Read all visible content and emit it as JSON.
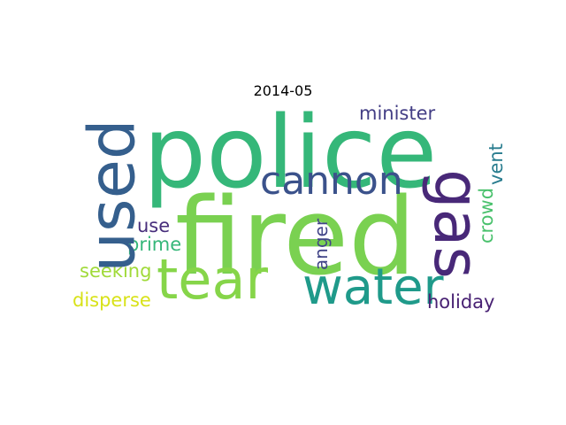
{
  "title": "2014-05",
  "words": {
    "police": {
      "text": "police",
      "color": "#35b779"
    },
    "fired": {
      "text": "fired",
      "color": "#7ad151"
    },
    "tear": {
      "text": "tear",
      "color": "#86d549"
    },
    "water": {
      "text": "water",
      "color": "#1f9a8a"
    },
    "used": {
      "text": "used",
      "color": "#355f8d"
    },
    "gas": {
      "text": "gas",
      "color": "#482878"
    },
    "cannon": {
      "text": "cannon",
      "color": "#3b528b"
    },
    "minister": {
      "text": "minister",
      "color": "#433e85"
    },
    "use": {
      "text": "use",
      "color": "#472d7b"
    },
    "prime": {
      "text": "prime",
      "color": "#35b779"
    },
    "seeking": {
      "text": "seeking",
      "color": "#a0da39"
    },
    "disperse": {
      "text": "disperse",
      "color": "#d8e219"
    },
    "holiday": {
      "text": "holiday",
      "color": "#482173"
    },
    "crowd": {
      "text": "crowd",
      "color": "#4ac16d"
    },
    "vent": {
      "text": "vent",
      "color": "#287c8e"
    },
    "anger": {
      "text": "anger",
      "color": "#414487"
    }
  }
}
